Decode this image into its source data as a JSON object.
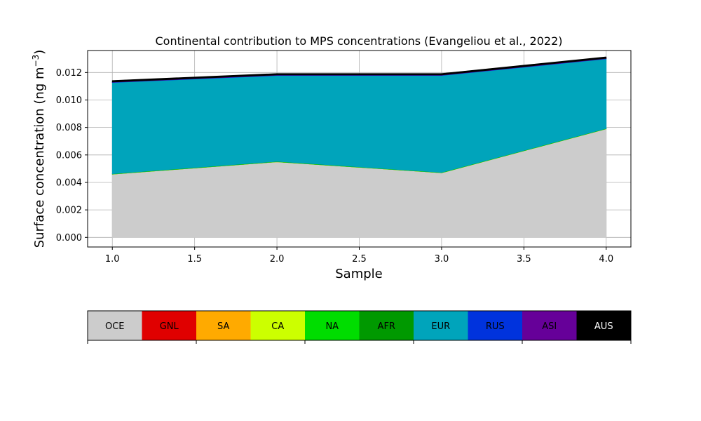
{
  "chart_data": {
    "type": "area",
    "title": "Continental contribution to MPS concentrations (Evangeliou et al., 2022)",
    "xlabel": "Sample",
    "ylabel_main": "Surface concentration (ng m",
    "ylabel_sup": "−3",
    "ylabel_close": ")",
    "x": [
      1.0,
      2.0,
      3.0,
      4.0
    ],
    "xlim": [
      0.85,
      4.15
    ],
    "ylim": [
      -0.0007,
      0.0136
    ],
    "xticks": [
      "1.0",
      "1.5",
      "2.0",
      "2.5",
      "3.0",
      "3.5",
      "4.0"
    ],
    "xtick_values": [
      1.0,
      1.5,
      2.0,
      2.5,
      3.0,
      3.5,
      4.0
    ],
    "yticks": [
      "0.000",
      "0.002",
      "0.004",
      "0.006",
      "0.008",
      "0.010",
      "0.012"
    ],
    "ytick_values": [
      0.0,
      0.002,
      0.004,
      0.006,
      0.008,
      0.01,
      0.012
    ],
    "grid": true,
    "stacked": true,
    "series": [
      {
        "name": "OCE",
        "color": "#cccccc",
        "values": [
          0.0046,
          0.0055,
          0.0047,
          0.0079
        ]
      },
      {
        "name": "GNL",
        "color": "#e00000",
        "values": [
          0.0,
          0.0,
          0.0,
          0.0
        ]
      },
      {
        "name": "SA",
        "color": "#ffaa00",
        "values": [
          0.0,
          0.0,
          0.0,
          0.0
        ]
      },
      {
        "name": "CA",
        "color": "#ccff00",
        "values": [
          0.0,
          0.0,
          0.0,
          0.0
        ]
      },
      {
        "name": "NA",
        "color": "#00dd00",
        "values": [
          2e-05,
          2e-05,
          2e-05,
          2e-05
        ]
      },
      {
        "name": "AFR",
        "color": "#009900",
        "values": [
          1e-05,
          1e-05,
          1e-05,
          1e-05
        ]
      },
      {
        "name": "EUR",
        "color": "#00a4bb",
        "values": [
          0.00664,
          0.00625,
          0.00705,
          0.00506
        ]
      },
      {
        "name": "RUS",
        "color": "#0033dd",
        "values": [
          2e-05,
          2e-05,
          2e-05,
          2e-05
        ]
      },
      {
        "name": "ASI",
        "color": "#660099",
        "values": [
          2e-05,
          2e-05,
          2e-05,
          2e-05
        ]
      },
      {
        "name": "AUS",
        "color": "#000000",
        "values": [
          9e-05,
          9e-05,
          9e-05,
          9e-05
        ]
      }
    ],
    "legend": {
      "placement": "bottom",
      "items": [
        {
          "label": "OCE",
          "color": "#cccccc",
          "text_color": "#000000"
        },
        {
          "label": "GNL",
          "color": "#e00000",
          "text_color": "#000000"
        },
        {
          "label": "SA",
          "color": "#ffaa00",
          "text_color": "#000000"
        },
        {
          "label": "CA",
          "color": "#ccff00",
          "text_color": "#000000"
        },
        {
          "label": "NA",
          "color": "#00dd00",
          "text_color": "#000000"
        },
        {
          "label": "AFR",
          "color": "#009900",
          "text_color": "#000000"
        },
        {
          "label": "EUR",
          "color": "#00a4bb",
          "text_color": "#000000"
        },
        {
          "label": "RUS",
          "color": "#0033dd",
          "text_color": "#000000"
        },
        {
          "label": "ASI",
          "color": "#660099",
          "text_color": "#000000"
        },
        {
          "label": "AUS",
          "color": "#000000",
          "text_color": "#ffffff"
        }
      ]
    },
    "colors": {
      "grid": "#b0b0b0",
      "axes": "#000000",
      "top_line": "#000000"
    }
  }
}
